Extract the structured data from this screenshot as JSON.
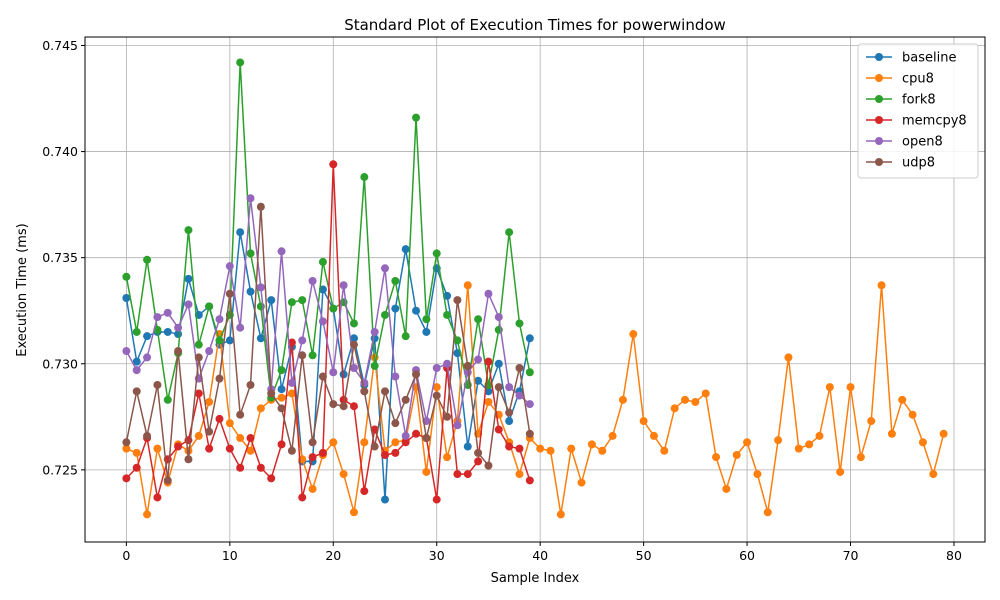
{
  "chart_data": {
    "type": "line",
    "title": "Standard Plot of Execution Times for powerwindow",
    "xlabel": "Sample Index",
    "ylabel": "Execution Time (ms)",
    "xlim": [
      -4,
      83
    ],
    "ylim": [
      0.7216,
      0.7454
    ],
    "xticks": [
      0,
      10,
      20,
      30,
      40,
      50,
      60,
      70,
      80
    ],
    "yticks": [
      0.725,
      0.73,
      0.735,
      0.74,
      0.745
    ],
    "ytick_labels": [
      "0.725",
      "0.730",
      "0.735",
      "0.740",
      "0.745"
    ],
    "grid": true,
    "legend_position": "top-right",
    "series": [
      {
        "name": "baseline",
        "color": "#1f77b4",
        "values": [
          0.7331,
          0.7301,
          0.7313,
          0.7315,
          0.7315,
          0.7314,
          0.734,
          0.7323,
          0.7327,
          0.7309,
          0.7311,
          0.7362,
          0.7334,
          0.7312,
          0.733,
          0.7288,
          0.7308,
          0.7254,
          0.7254,
          0.7335,
          0.7326,
          0.7295,
          0.7312,
          0.729,
          0.7312,
          0.7236,
          0.7326,
          0.7354,
          0.7325,
          0.7315,
          0.7345,
          0.7332,
          0.7305,
          0.7261,
          0.7292,
          0.7287,
          0.73,
          0.7273,
          0.7287,
          0.7312
        ]
      },
      {
        "name": "cpu8",
        "color": "#ff7f0e",
        "values": [
          0.726,
          0.7258,
          0.7229,
          0.726,
          0.7244,
          0.7262,
          0.7259,
          0.7266,
          0.7282,
          0.7314,
          0.7272,
          0.7265,
          0.7259,
          0.7279,
          0.7283,
          0.7284,
          0.7286,
          0.7255,
          0.7241,
          0.7257,
          0.7263,
          0.7248,
          0.723,
          0.7263,
          0.7303,
          0.7259,
          0.7263,
          0.7264,
          0.7289,
          0.7249,
          0.7289,
          0.7256,
          0.7273,
          0.7337,
          0.7267,
          0.7282,
          0.7276,
          0.7263,
          0.7248,
          0.7265,
          0.726,
          0.7259,
          0.7229,
          0.726,
          0.7244,
          0.7262,
          0.7259,
          0.7266,
          0.7283,
          0.7314,
          0.7273,
          0.7266,
          0.7259,
          0.7279,
          0.7283,
          0.7282,
          0.7286,
          0.7256,
          0.7241,
          0.7257,
          0.7263,
          0.7248,
          0.723,
          0.7264,
          0.7303,
          0.726,
          0.7262,
          0.7266,
          0.7289,
          0.7249,
          0.7289,
          0.7256,
          0.7273,
          0.7337,
          0.7267,
          0.7283,
          0.7276,
          0.7263,
          0.7248,
          0.7267
        ]
      },
      {
        "name": "fork8",
        "color": "#2ca02c",
        "values": [
          0.7341,
          0.7315,
          0.7349,
          0.7316,
          0.7283,
          0.7305,
          0.7363,
          0.7309,
          0.7327,
          0.7311,
          0.7323,
          0.7442,
          0.7352,
          0.7327,
          0.7284,
          0.7297,
          0.7329,
          0.733,
          0.7304,
          0.7348,
          0.7326,
          0.7329,
          0.7319,
          0.7388,
          0.7299,
          0.7323,
          0.7339,
          0.7313,
          0.7416,
          0.7321,
          0.7352,
          0.7323,
          0.7311,
          0.729,
          0.7321,
          0.729,
          0.7316,
          0.7362,
          0.7319,
          0.7296
        ]
      },
      {
        "name": "memcpy8",
        "color": "#d62728",
        "values": [
          0.7246,
          0.7251,
          0.7265,
          0.7237,
          0.7255,
          0.7261,
          0.7264,
          0.7286,
          0.726,
          0.7274,
          0.726,
          0.7251,
          0.7265,
          0.7251,
          0.7246,
          0.7262,
          0.731,
          0.7237,
          0.7256,
          0.7258,
          0.7394,
          0.7283,
          0.728,
          0.724,
          0.7269,
          0.7257,
          0.7258,
          0.7263,
          0.7267,
          0.7265,
          0.7236,
          0.7298,
          0.7248,
          0.7248,
          0.7254,
          0.7301,
          0.7269,
          0.7261,
          0.726,
          0.7245
        ]
      },
      {
        "name": "open8",
        "color": "#9467bd",
        "values": [
          0.7306,
          0.7297,
          0.7303,
          0.7322,
          0.7324,
          0.7317,
          0.7328,
          0.7293,
          0.7306,
          0.7321,
          0.7346,
          0.7317,
          0.7378,
          0.7336,
          0.7288,
          0.7353,
          0.7291,
          0.7311,
          0.7339,
          0.732,
          0.7296,
          0.7337,
          0.7298,
          0.7291,
          0.7315,
          0.7345,
          0.7294,
          0.7266,
          0.7297,
          0.7273,
          0.7298,
          0.73,
          0.7271,
          0.7296,
          0.7302,
          0.7333,
          0.7322,
          0.7289,
          0.7285,
          0.7281
        ]
      },
      {
        "name": "udp8",
        "color": "#8c564b",
        "values": [
          0.7263,
          0.7287,
          0.7266,
          0.729,
          0.7245,
          0.7306,
          0.7255,
          0.7303,
          0.7268,
          0.7293,
          0.7333,
          0.7276,
          0.729,
          0.7374,
          0.7286,
          0.7279,
          0.7259,
          0.7304,
          0.7263,
          0.7294,
          0.7281,
          0.728,
          0.7309,
          0.7287,
          0.7261,
          0.7287,
          0.7272,
          0.7283,
          0.7295,
          0.7265,
          0.7285,
          0.7275,
          0.733,
          0.7299,
          0.7258,
          0.7252,
          0.7289,
          0.7277,
          0.7298,
          0.7267
        ]
      }
    ]
  }
}
